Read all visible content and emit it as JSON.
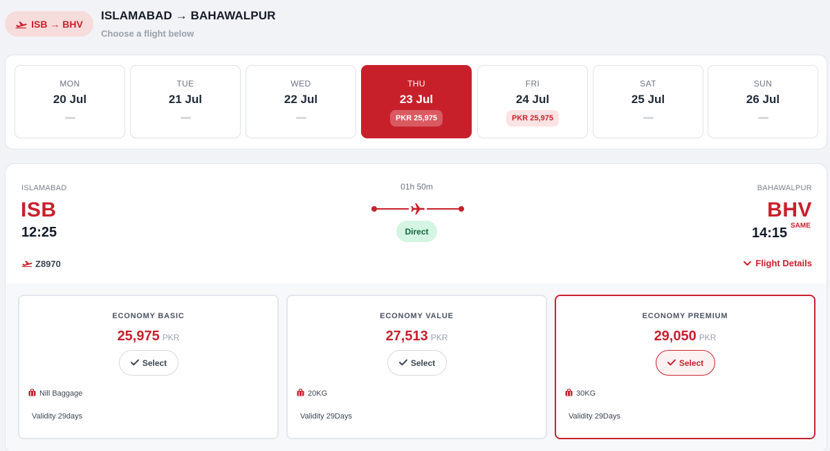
{
  "header": {
    "route_code": "ISB → BHV",
    "title": "ISLAMABAD → BAHAWALPUR",
    "subtitle": "Choose a flight below"
  },
  "dates": [
    {
      "dow": "MON",
      "date": "20 Jul",
      "price": null,
      "active": false
    },
    {
      "dow": "TUE",
      "date": "21 Jul",
      "price": null,
      "active": false
    },
    {
      "dow": "WED",
      "date": "22 Jul",
      "price": null,
      "active": false
    },
    {
      "dow": "THU",
      "date": "23 Jul",
      "price": "PKR 25,975",
      "active": true
    },
    {
      "dow": "FRI",
      "date": "24 Jul",
      "price": "PKR 25,975",
      "active": false
    },
    {
      "dow": "SAT",
      "date": "25 Jul",
      "price": null,
      "active": false
    },
    {
      "dow": "SUN",
      "date": "26 Jul",
      "price": null,
      "active": false
    }
  ],
  "flight": {
    "origin_city": "ISLAMABAD",
    "origin_code": "ISB",
    "departure_time": "12:25",
    "duration": "01h 50m",
    "stops": "Direct",
    "destination_city": "BAHAWALPUR",
    "destination_code": "BHV",
    "arrival_time": "14:15",
    "arrival_day": "SAME",
    "flight_number": "Z8970",
    "details_label": "Flight Details"
  },
  "fares": [
    {
      "name": "ECONOMY BASIC",
      "price": "25,975",
      "currency": "PKR",
      "select_label": "Select",
      "baggage": "Nill Baggage",
      "validity": "Validity 29days",
      "selected": false
    },
    {
      "name": "ECONOMY VALUE",
      "price": "27,513",
      "currency": "PKR",
      "select_label": "Select",
      "baggage": "20KG",
      "validity": "Validity 29Days",
      "selected": false
    },
    {
      "name": "ECONOMY PREMIUM",
      "price": "29,050",
      "currency": "PKR",
      "select_label": "Select",
      "baggage": "30KG",
      "validity": "Validity 29Days",
      "selected": true
    }
  ],
  "colors": {
    "accent": "#c8202b",
    "direct_bg": "#d4f5e3",
    "direct_text": "#12633c"
  },
  "icons": {
    "airline": "plane-takeoff-icon",
    "route": "airplane-icon",
    "expand": "chevron-down-icon",
    "select": "check-icon",
    "baggage": "luggage-icon"
  }
}
